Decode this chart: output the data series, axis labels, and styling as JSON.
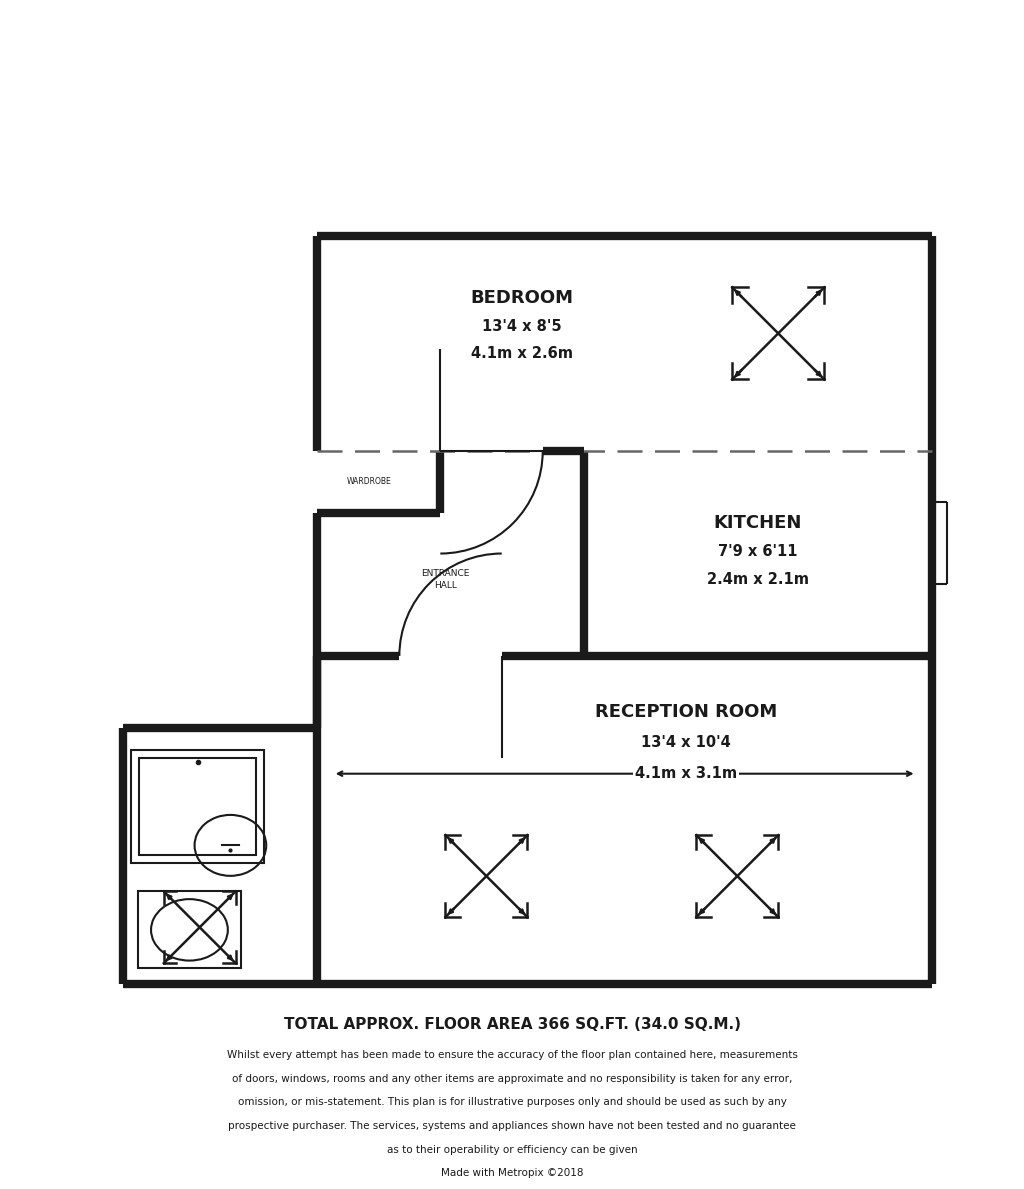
{
  "bg_color": "#ffffff",
  "wall_color": "#1a1a1a",
  "wall_lw": 6.0,
  "thin_lw": 1.5,
  "dashed_lw": 1.8,
  "title": "TOTAL APPROX. FLOOR AREA 366 SQ.FT. (34.0 SQ.M.)",
  "disclaimer_lines": [
    "Whilst every attempt has been made to ensure the accuracy of the floor plan contained here, measurements",
    "of doors, windows, rooms and any other items are approximate and no responsibility is taken for any error,",
    "omission, or mis-statement. This plan is for illustrative purposes only and should be used as such by any",
    "prospective purchaser. The services, systems and appliances shown have not been tested and no guarantee",
    "as to their operability or efficiency can be given",
    "Made with Metropix ©2018"
  ],
  "bedroom_label": "BEDROOM",
  "bedroom_sub1": "13'4 x 8'5",
  "bedroom_sub2": "4.1m x 2.6m",
  "kitchen_label": "KITCHEN",
  "kitchen_sub1": "7'9 x 6'11",
  "kitchen_sub2": "2.4m x 2.1m",
  "reception_label": "RECEPTION ROOM",
  "reception_sub1": "13'4 x 10'4",
  "reception_sub2": "4.1m x 3.1m",
  "entrance_label": "ENTRANCE\nHALL",
  "wardrobe_label": "WARDROBE"
}
